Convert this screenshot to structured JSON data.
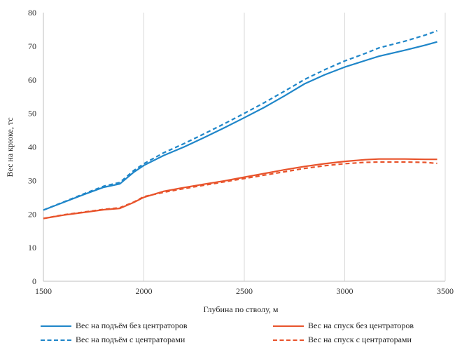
{
  "chart_data": {
    "type": "line",
    "title": "",
    "xlabel": "Глубина по стволу, м",
    "ylabel": "Вес на крюке, тс",
    "xlim": [
      1500,
      3500
    ],
    "ylim": [
      0,
      80
    ],
    "xticks": [
      1500,
      2000,
      2500,
      3000,
      3500
    ],
    "yticks": [
      0,
      10,
      20,
      30,
      40,
      50,
      60,
      70,
      80
    ],
    "xtick_labels": [
      "1500",
      "2000",
      "2500",
      "3000",
      "3500"
    ],
    "ytick_labels": [
      "0",
      "10",
      "20",
      "30",
      "40",
      "50",
      "60",
      "70",
      "80"
    ],
    "grid": "vertical",
    "legend_position": "bottom",
    "series": [
      {
        "name": "Вес на подъём без центраторов",
        "color": "#1f86c9",
        "dash": "solid",
        "x": [
          1500,
          1600,
          1700,
          1800,
          1880,
          1950,
          2000,
          2100,
          2200,
          2300,
          2400,
          2500,
          2600,
          2700,
          2800,
          2900,
          3000,
          3100,
          3170,
          3300,
          3400,
          3460
        ],
        "y": [
          21.2,
          23.5,
          25.8,
          28.0,
          29.0,
          32.5,
          34.5,
          37.5,
          40.0,
          42.8,
          45.7,
          48.7,
          51.8,
          55.2,
          58.8,
          61.5,
          63.8,
          65.7,
          67.0,
          68.8,
          70.3,
          71.3
        ]
      },
      {
        "name": "Вес на спуск без центраторов",
        "color": "#e8532b",
        "dash": "solid",
        "x": [
          1500,
          1600,
          1700,
          1800,
          1880,
          1950,
          2000,
          2100,
          2200,
          2300,
          2400,
          2500,
          2600,
          2700,
          2800,
          2900,
          3000,
          3100,
          3170,
          3300,
          3400,
          3460
        ],
        "y": [
          18.7,
          19.7,
          20.5,
          21.3,
          21.7,
          23.5,
          25.0,
          26.8,
          27.9,
          28.9,
          29.9,
          31.0,
          32.1,
          33.2,
          34.2,
          35.0,
          35.7,
          36.2,
          36.4,
          36.4,
          36.3,
          36.3
        ]
      },
      {
        "name": "Вес на подъём с центраторами",
        "color": "#1f86c9",
        "dash": "dashed",
        "x": [
          1500,
          1600,
          1700,
          1800,
          1880,
          1950,
          2000,
          2100,
          2200,
          2300,
          2400,
          2500,
          2600,
          2700,
          2800,
          2900,
          3000,
          3100,
          3170,
          3300,
          3400,
          3460
        ],
        "y": [
          21.2,
          23.6,
          26.0,
          28.3,
          29.4,
          33.0,
          35.0,
          38.3,
          41.0,
          43.9,
          46.9,
          50.0,
          53.2,
          56.6,
          60.1,
          63.0,
          65.6,
          67.8,
          69.5,
          71.5,
          73.3,
          74.6
        ]
      },
      {
        "name": "Вес на спуск с центраторами",
        "color": "#e8532b",
        "dash": "dashed",
        "x": [
          1500,
          1600,
          1700,
          1800,
          1880,
          1950,
          2000,
          2100,
          2200,
          2300,
          2400,
          2500,
          2600,
          2700,
          2800,
          2900,
          3000,
          3100,
          3170,
          3300,
          3400,
          3460
        ],
        "y": [
          18.7,
          19.8,
          20.6,
          21.4,
          21.9,
          23.6,
          25.2,
          26.5,
          27.6,
          28.6,
          29.6,
          30.6,
          31.6,
          32.6,
          33.6,
          34.4,
          35.0,
          35.4,
          35.5,
          35.5,
          35.4,
          35.1
        ]
      }
    ]
  }
}
